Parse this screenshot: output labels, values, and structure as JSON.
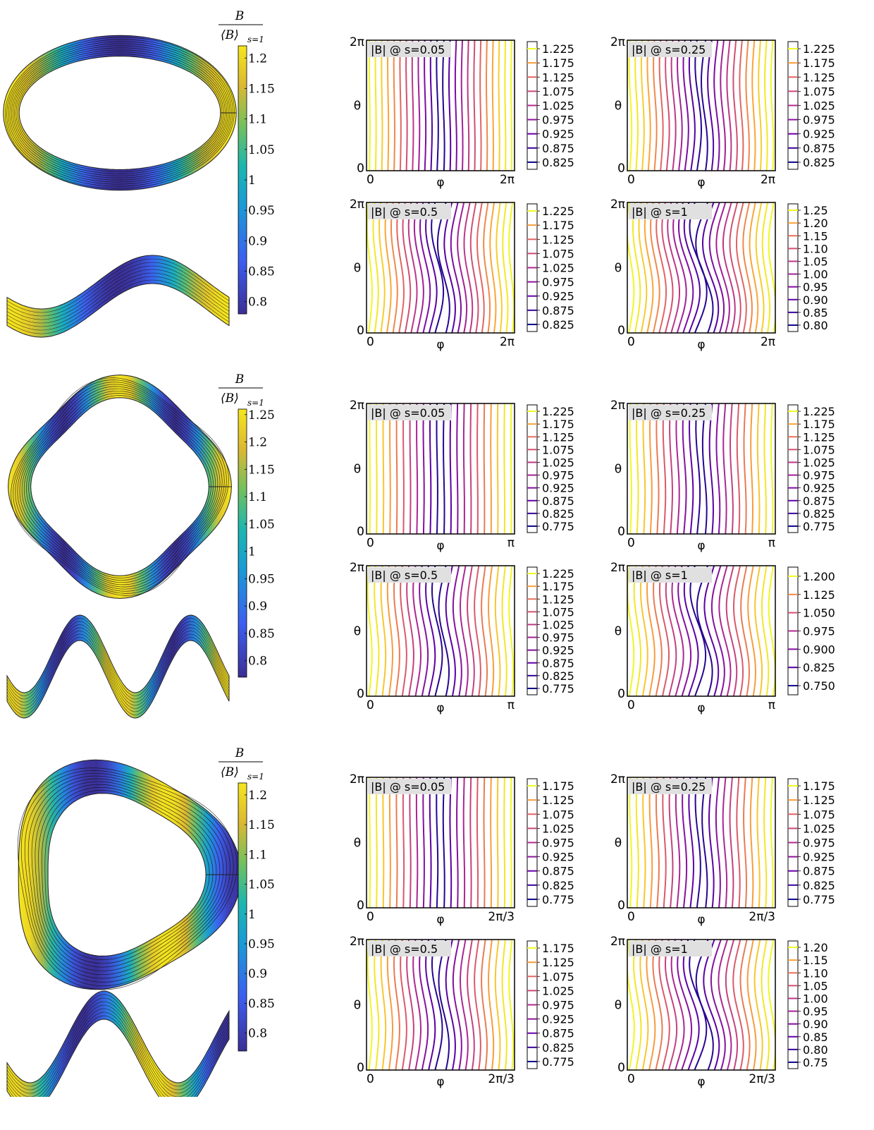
{
  "symbols": {
    "theta": "θ",
    "phi": "φ",
    "zero": "0",
    "two_pi": "2π"
  },
  "main_colorbar_label": {
    "numerator": "B",
    "denominator_bracket": "⟨B⟩",
    "denominator_subscript": "s=1"
  },
  "colors": {
    "plasma_low": "#0d0887",
    "plasma_high": "#f0f921",
    "viridis_low": "#3b2f95",
    "viridis_high": "#f5e61e",
    "field_line": "#111111",
    "label_box": "#e0e0e0"
  },
  "chart_data": [
    {
      "type": "contour",
      "row": 1,
      "surface_views": [
        "top",
        "side"
      ],
      "main_colorbar": {
        "colormap": "parula",
        "ylim": [
          0.78,
          1.22
        ],
        "ticks": [
          "1.2",
          "1.15",
          "1.1",
          "1.05",
          "1",
          "0.95",
          "0.9",
          "0.85",
          "0.8"
        ]
      },
      "field_periods": 2,
      "panels": [
        {
          "title": "|B| @ s=0.05",
          "xlabel": "φ",
          "ylabel": "θ",
          "xticks": [
            "0",
            "2π"
          ],
          "yticks": [
            "0",
            "2π"
          ],
          "levels": [
            "1.225",
            "1.175",
            "1.125",
            "1.075",
            "1.025",
            "0.975",
            "0.925",
            "0.875",
            "0.825"
          ],
          "modulation": 0.05,
          "lines": 24
        },
        {
          "title": "|B| @ s=0.25",
          "xlabel": "φ",
          "ylabel": "θ",
          "xticks": [
            "0",
            "2π"
          ],
          "yticks": [
            "0",
            "2π"
          ],
          "levels": [
            "1.225",
            "1.175",
            "1.125",
            "1.075",
            "1.025",
            "0.975",
            "0.925",
            "0.875",
            "0.825"
          ],
          "modulation": 0.18,
          "lines": 24
        },
        {
          "title": "|B| @ s=0.5",
          "xlabel": "φ",
          "ylabel": "θ",
          "xticks": [
            "0",
            "2π"
          ],
          "yticks": [
            "0",
            "2π"
          ],
          "levels": [
            "1.225",
            "1.175",
            "1.125",
            "1.075",
            "1.025",
            "0.975",
            "0.925",
            "0.875",
            "0.825"
          ],
          "modulation": 0.35,
          "lines": 24
        },
        {
          "title": "|B| @ s=1",
          "xlabel": "φ",
          "ylabel": "θ",
          "xticks": [
            "0",
            "2π"
          ],
          "yticks": [
            "0",
            "2π"
          ],
          "levels": [
            "1.25",
            "1.20",
            "1.15",
            "1.10",
            "1.05",
            "1.00",
            "0.95",
            "0.90",
            "0.85",
            "0.80"
          ],
          "modulation": 0.5,
          "lines": 24
        }
      ]
    },
    {
      "type": "contour",
      "row": 2,
      "surface_views": [
        "top",
        "side"
      ],
      "main_colorbar": {
        "colormap": "parula",
        "ylim": [
          0.77,
          1.26
        ],
        "ticks": [
          "1.25",
          "1.2",
          "1.15",
          "1.1",
          "1.05",
          "1",
          "0.95",
          "0.9",
          "0.85",
          "0.8"
        ]
      },
      "field_periods": 4,
      "panels": [
        {
          "title": "|B| @ s=0.05",
          "xlabel": "φ",
          "ylabel": "θ",
          "xticks": [
            "0",
            "π"
          ],
          "yticks": [
            "0",
            "2π"
          ],
          "levels": [
            "1.225",
            "1.175",
            "1.125",
            "1.075",
            "1.025",
            "0.975",
            "0.925",
            "0.875",
            "0.825",
            "0.775"
          ],
          "modulation": 0.03,
          "lines": 22
        },
        {
          "title": "|B| @ s=0.25",
          "xlabel": "φ",
          "ylabel": "θ",
          "xticks": [
            "0",
            "π"
          ],
          "yticks": [
            "0",
            "2π"
          ],
          "levels": [
            "1.225",
            "1.175",
            "1.125",
            "1.075",
            "1.025",
            "0.975",
            "0.925",
            "0.875",
            "0.825",
            "0.775"
          ],
          "modulation": 0.12,
          "lines": 22
        },
        {
          "title": "|B| @ s=0.5",
          "xlabel": "φ",
          "ylabel": "θ",
          "xticks": [
            "0",
            "π"
          ],
          "yticks": [
            "0",
            "2π"
          ],
          "levels": [
            "1.225",
            "1.175",
            "1.125",
            "1.075",
            "1.025",
            "0.975",
            "0.925",
            "0.875",
            "0.825",
            "0.775"
          ],
          "modulation": 0.3,
          "lines": 22
        },
        {
          "title": "|B| @ s=1",
          "xlabel": "φ",
          "ylabel": "θ",
          "xticks": [
            "0",
            "π"
          ],
          "yticks": [
            "0",
            "2π"
          ],
          "levels": [
            "1.200",
            "1.125",
            "1.050",
            "0.975",
            "0.900",
            "0.825",
            "0.750"
          ],
          "modulation": 0.45,
          "lines": 22
        }
      ]
    },
    {
      "type": "contour",
      "row": 3,
      "surface_views": [
        "top",
        "side"
      ],
      "main_colorbar": {
        "colormap": "parula",
        "ylim": [
          0.77,
          1.22
        ],
        "ticks": [
          "1.2",
          "1.15",
          "1.1",
          "1.05",
          "1",
          "0.95",
          "0.9",
          "0.85",
          "0.8"
        ]
      },
      "field_periods": 3,
      "panels": [
        {
          "title": "|B| @ s=0.05",
          "xlabel": "φ",
          "ylabel": "θ",
          "xticks": [
            "0",
            "2π/3"
          ],
          "yticks": [
            "0",
            "2π"
          ],
          "levels": [
            "1.175",
            "1.125",
            "1.075",
            "1.025",
            "0.975",
            "0.925",
            "0.875",
            "0.825",
            "0.775"
          ],
          "modulation": 0.04,
          "lines": 22
        },
        {
          "title": "|B| @ s=0.25",
          "xlabel": "φ",
          "ylabel": "θ",
          "xticks": [
            "0",
            "2π/3"
          ],
          "yticks": [
            "0",
            "2π"
          ],
          "levels": [
            "1.175",
            "1.125",
            "1.075",
            "1.025",
            "0.975",
            "0.925",
            "0.875",
            "0.825",
            "0.775"
          ],
          "modulation": 0.15,
          "lines": 22
        },
        {
          "title": "|B| @ s=0.5",
          "xlabel": "φ",
          "ylabel": "θ",
          "xticks": [
            "0",
            "2π/3"
          ],
          "yticks": [
            "0",
            "2π"
          ],
          "levels": [
            "1.175",
            "1.125",
            "1.075",
            "1.025",
            "0.975",
            "0.925",
            "0.875",
            "0.825",
            "0.775"
          ],
          "modulation": 0.3,
          "lines": 22
        },
        {
          "title": "|B| @ s=1",
          "xlabel": "φ",
          "ylabel": "θ",
          "xticks": [
            "0",
            "2π/3"
          ],
          "yticks": [
            "0",
            "2π"
          ],
          "levels": [
            "1.20",
            "1.15",
            "1.10",
            "1.05",
            "1.00",
            "0.95",
            "0.90",
            "0.85",
            "0.80",
            "0.75"
          ],
          "modulation": 0.5,
          "lines": 22
        }
      ]
    }
  ]
}
